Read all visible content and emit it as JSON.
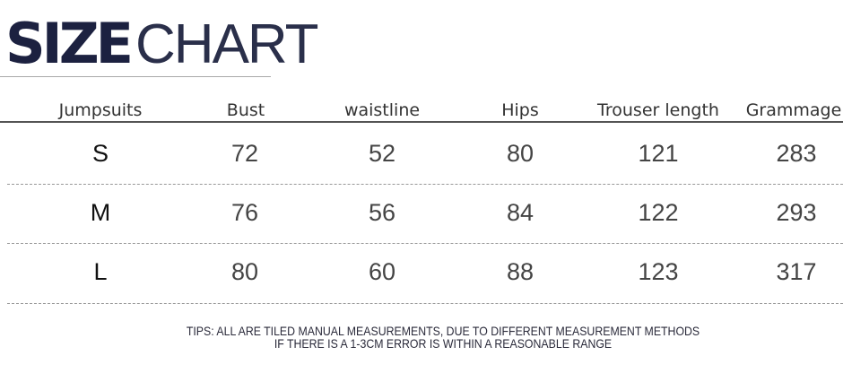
{
  "title": {
    "bold": "SIZE",
    "light": "CHART"
  },
  "table": {
    "headers": [
      "Jumpsuits",
      "Bust",
      "waistline",
      "Hips",
      "Trouser length",
      "Grammage"
    ],
    "rows": [
      [
        "S",
        "72",
        "52",
        "80",
        "121",
        "283"
      ],
      [
        "M",
        "76",
        "56",
        "84",
        "122",
        "293"
      ],
      [
        "L",
        "80",
        "60",
        "88",
        "123",
        "317"
      ]
    ]
  },
  "tips": {
    "line1": "TIPS: ALL ARE TILED MANUAL MEASUREMENTS, DUE TO DIFFERENT MEASUREMENT METHODS",
    "line2": "IF THERE IS A 1-3CM ERROR IS WITHIN A REASONABLE RANGE"
  },
  "colors": {
    "title": "#1c2140"
  }
}
